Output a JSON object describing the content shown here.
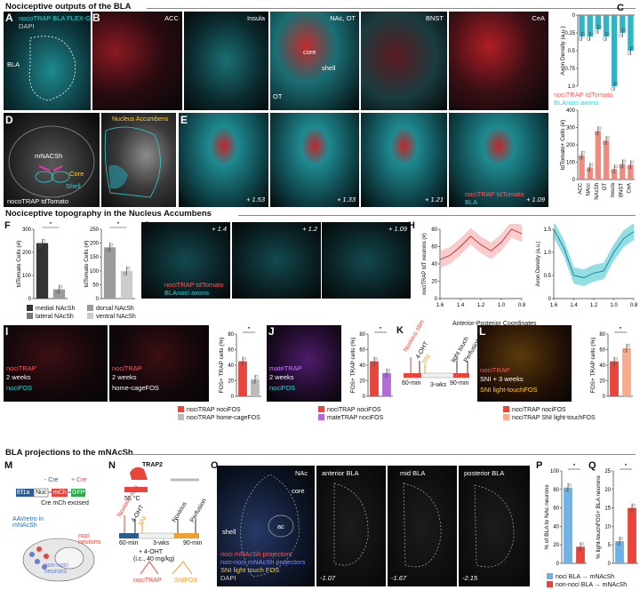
{
  "sections": {
    "s1": "Nociceptive outputs of the BLA",
    "s2": "Nociceptive topography in the Nucleus Accumbens",
    "s3": "BLA projections to the mNAcSh"
  },
  "panel_letters": [
    "A",
    "B",
    "C",
    "D",
    "E",
    "F",
    "G",
    "H",
    "I",
    "J",
    "K",
    "L",
    "M",
    "N",
    "O",
    "P",
    "Q"
  ],
  "panelA": {
    "l1": "nocoTRAP BLA FLEX-GFP",
    "l2": "DAPI",
    "region": "BLA"
  },
  "panelB": {
    "labels": [
      "ACC",
      "Insula",
      "NAc, OT",
      "BNST",
      "CeA"
    ],
    "core": "core",
    "shell": "shell",
    "ot": "OT",
    "leg1": "nociTRAP tdTomato",
    "leg2": "BLAnoci axons"
  },
  "panelD": {
    "mnacsh": "mNACSh",
    "core": "Core",
    "shell": "Shell",
    "caption": "nocoTRAP tdTomato",
    "inset": "Nucleus Accumbens"
  },
  "panelE": {
    "coords": [
      "+ 1.53",
      "+ 1.33",
      "+ 1.21",
      "+ 1.09"
    ],
    "leg1": "nociTRAP tdTomato",
    "leg2": "BLA"
  },
  "panelG": {
    "coords": [
      "+ 1.4",
      "+ 1.2",
      "+ 1.09"
    ],
    "leg1": "nociTRAP tdTomato",
    "leg2": "BLAnoci axons"
  },
  "panelH": {
    "l1": "NAcShnoci neurons",
    "l2": "BLAnoci axons in NAcShnoci",
    "xlabel": "Anterior-Posterior Coordinates"
  },
  "panelI": {
    "i1a": "nociTRAP",
    "i1b": "2 weeks",
    "i1c": "nociFOS",
    "i2a": "nociTRAP",
    "i2b": "2 weeks",
    "i2c": "home-cageFOS"
  },
  "panelJ": {
    "a": "mateTRAP",
    "b": "2 weeks",
    "c": "nociFOS"
  },
  "panelK": {
    "t1": "Noxious stim",
    "t2": "4-OHT",
    "t3": "SNI",
    "t4": "light touch",
    "t5": "Perfusion",
    "d1": "60-min",
    "d2": "3-wks",
    "d3": "90-min"
  },
  "panelL": {
    "a": "nociTRAP",
    "b": "SNI + 3 weeks",
    "c": "SNI light-touchFOS"
  },
  "panelM": {
    "ef1a": "Ef1a",
    "nuc": "Nuc",
    "mch": "mCh",
    "cre": "Cre",
    "gfp": "GFP",
    "minuscre": "- Cre",
    "pluscre": "+ Cre",
    "excised": "Cre mCh excised",
    "aav": "AAVretro in mNAcSh",
    "noci": "noci neurons",
    "nonnoci": "non-noci neurons"
  },
  "panelN": {
    "trap2": "TRAP2",
    "temp": "55 °C",
    "t1": "Noxious stim",
    "t2": "4-OHT",
    "t3": "SNI",
    "t4": "Noxious",
    "t5": "Perfusion",
    "d1": "60-min",
    "d2": "3-wks",
    "d3": "90-min",
    "dose": "+ 4-OHT",
    "dose2": "(i.c., 40 mg/kg)",
    "o1": "nociTRAP",
    "o2": "SNIFOS"
  },
  "panelO": {
    "titles": [
      "NAc",
      "anterior BLA",
      "mid BLA",
      "posterior BLA"
    ],
    "core": "core",
    "shell": "shell",
    "ac": "ac",
    "coords": [
      "-1.07",
      "-1.67",
      "-2.15"
    ],
    "leg1": "noci mNAcSh projectors",
    "leg2": "non-noci mNAcSh projectors",
    "leg3": "SNI light touch FOS",
    "leg4": "DAPI"
  },
  "legends": {
    "F1": "medial NAcSh",
    "F2": "lateral NAcSh",
    "F3": "dorsal NAcSh",
    "F4": "ventral NAcSh",
    "I1": "nociTRAP nociFOS",
    "I2": "nociTRAP home-cageFOS",
    "J1": "nociTRAP nociFOS",
    "J2": "mateTRAP nociFOS",
    "L1": "nociTRAP nociFOS",
    "L2": "nociTRAP SNI light-touchFOS",
    "PQ1": "noci BLA → mNAcSh",
    "PQ2": "non-noci BLA → mNAcSh"
  },
  "colors": {
    "cyan": "#2fb5c5",
    "red": "#e8453c",
    "salmon": "#f08a7e",
    "purple": "#b36bd6",
    "peach": "#f4ad8e",
    "blue": "#6fb3e6",
    "dark": "#333333",
    "grey": "#9a9a9a"
  },
  "chart_data": [
    {
      "id": "C_top",
      "type": "bar",
      "categories": [
        "ACC",
        "NAcc",
        "NAcSh",
        "OT",
        "Insula",
        "BNST",
        "CeA"
      ],
      "values": [
        0.3,
        0.3,
        0.2,
        0.3,
        1.0,
        0.25,
        0.5
      ],
      "ylabel": "Axon Density (a.u.)",
      "ylim": [
        1.0,
        0.0
      ],
      "ticks": [
        "0",
        "0.25",
        "0.5",
        "0.75",
        "1.0"
      ],
      "inverted": true
    },
    {
      "id": "C_bot",
      "type": "bar",
      "categories": [
        "ACC",
        "NAcc",
        "NAcSh",
        "OT",
        "Insula",
        "BNST",
        "CeA"
      ],
      "values": [
        140,
        70,
        280,
        225,
        60,
        90,
        85
      ],
      "ylabel": "tdTomato+ Cells (#)",
      "ylim": [
        0,
        400
      ],
      "ticks": [
        "0",
        "100",
        "200",
        "300",
        "400"
      ]
    },
    {
      "id": "F1",
      "type": "bar",
      "categories": [
        "medial NAcSh",
        "lateral NAcSh"
      ],
      "values": [
        240,
        40
      ],
      "ylabel": "tdTomato Cells (#)",
      "ylim": [
        0,
        300
      ],
      "ticks": [
        "0",
        "100",
        "200",
        "300"
      ],
      "sig": "*"
    },
    {
      "id": "F2",
      "type": "bar",
      "categories": [
        "dorsal NAcSh",
        "ventral NAcSh"
      ],
      "values": [
        185,
        100
      ],
      "ylabel": "tdTomato Cells (#)",
      "ylim": [
        0,
        250
      ],
      "ticks": [
        "0",
        "50",
        "100",
        "150",
        "200",
        "250"
      ],
      "sig": "*"
    },
    {
      "id": "H1",
      "type": "line",
      "x": [
        1.6,
        1.5,
        1.4,
        1.3,
        1.2,
        1.1,
        1.0,
        0.9,
        0.8
      ],
      "y": [
        45,
        50,
        60,
        72,
        62,
        55,
        65,
        80,
        75
      ],
      "ylabel": "nociTRAP tdT neurons (#)",
      "ylim": [
        0,
        80
      ],
      "ticks": [
        "0",
        "20",
        "40",
        "60",
        "80"
      ],
      "xticks": [
        "1.6",
        "1.4",
        "1.2",
        "1.0",
        "0.8"
      ]
    },
    {
      "id": "H2",
      "type": "line",
      "x": [
        1.6,
        1.5,
        1.4,
        1.3,
        1.2,
        1.1,
        1.0,
        0.9,
        0.8
      ],
      "y": [
        1.5,
        1.1,
        0.5,
        0.45,
        0.55,
        0.6,
        1.0,
        1.3,
        1.45
      ],
      "ylabel": "Axon Density (a.u.)",
      "ylim": [
        0,
        1.5
      ],
      "ticks": [
        "0",
        "0.5",
        "1.0",
        "1.5"
      ],
      "xticks": [
        "1.6",
        "1.4",
        "1.2",
        "1.0",
        "0.8"
      ]
    },
    {
      "id": "I",
      "type": "bar",
      "categories": [
        "nociTRAP nociFOS",
        "nociTRAP home-cageFOS"
      ],
      "values": [
        45,
        22
      ],
      "ylabel": "FOS+ TRAP cells (%)",
      "ylim": [
        0,
        80
      ],
      "ticks": [
        "0",
        "20",
        "40",
        "60",
        "80"
      ],
      "sig": "*"
    },
    {
      "id": "J",
      "type": "bar",
      "categories": [
        "nociTRAP nociFOS",
        "mateTRAP nociFOS"
      ],
      "values": [
        45,
        30
      ],
      "ylabel": "FOS+ TRAP cells (%)",
      "ylim": [
        0,
        80
      ],
      "ticks": [
        "0",
        "20",
        "40",
        "60",
        "80"
      ],
      "sig": "*"
    },
    {
      "id": "L",
      "type": "bar",
      "categories": [
        "nociTRAP nociFOS",
        "nociTRAP SNI light-touchFOS"
      ],
      "values": [
        45,
        62
      ],
      "ylabel": "FOS+ TRAP cells (%)",
      "ylim": [
        0,
        80
      ],
      "ticks": [
        "0",
        "20",
        "40",
        "60",
        "80"
      ],
      "sig": "*"
    },
    {
      "id": "P",
      "type": "bar",
      "categories": [
        "noci BLA",
        "non-noci BLA"
      ],
      "values": [
        82,
        18
      ],
      "ylabel": "% of BLA to NAc neurons",
      "ylim": [
        0,
        100
      ],
      "ticks": [
        "0",
        "20",
        "40",
        "60",
        "80",
        "100"
      ],
      "sig": "*"
    },
    {
      "id": "Q",
      "type": "bar",
      "categories": [
        "noci BLA",
        "non-noci BLA"
      ],
      "values": [
        6,
        15
      ],
      "ylabel": "% light-touchFOS+ BLA neurons",
      "ylim": [
        0,
        25
      ],
      "ticks": [
        "0",
        "5",
        "10",
        "15",
        "20",
        "25"
      ],
      "sig": "*"
    }
  ]
}
